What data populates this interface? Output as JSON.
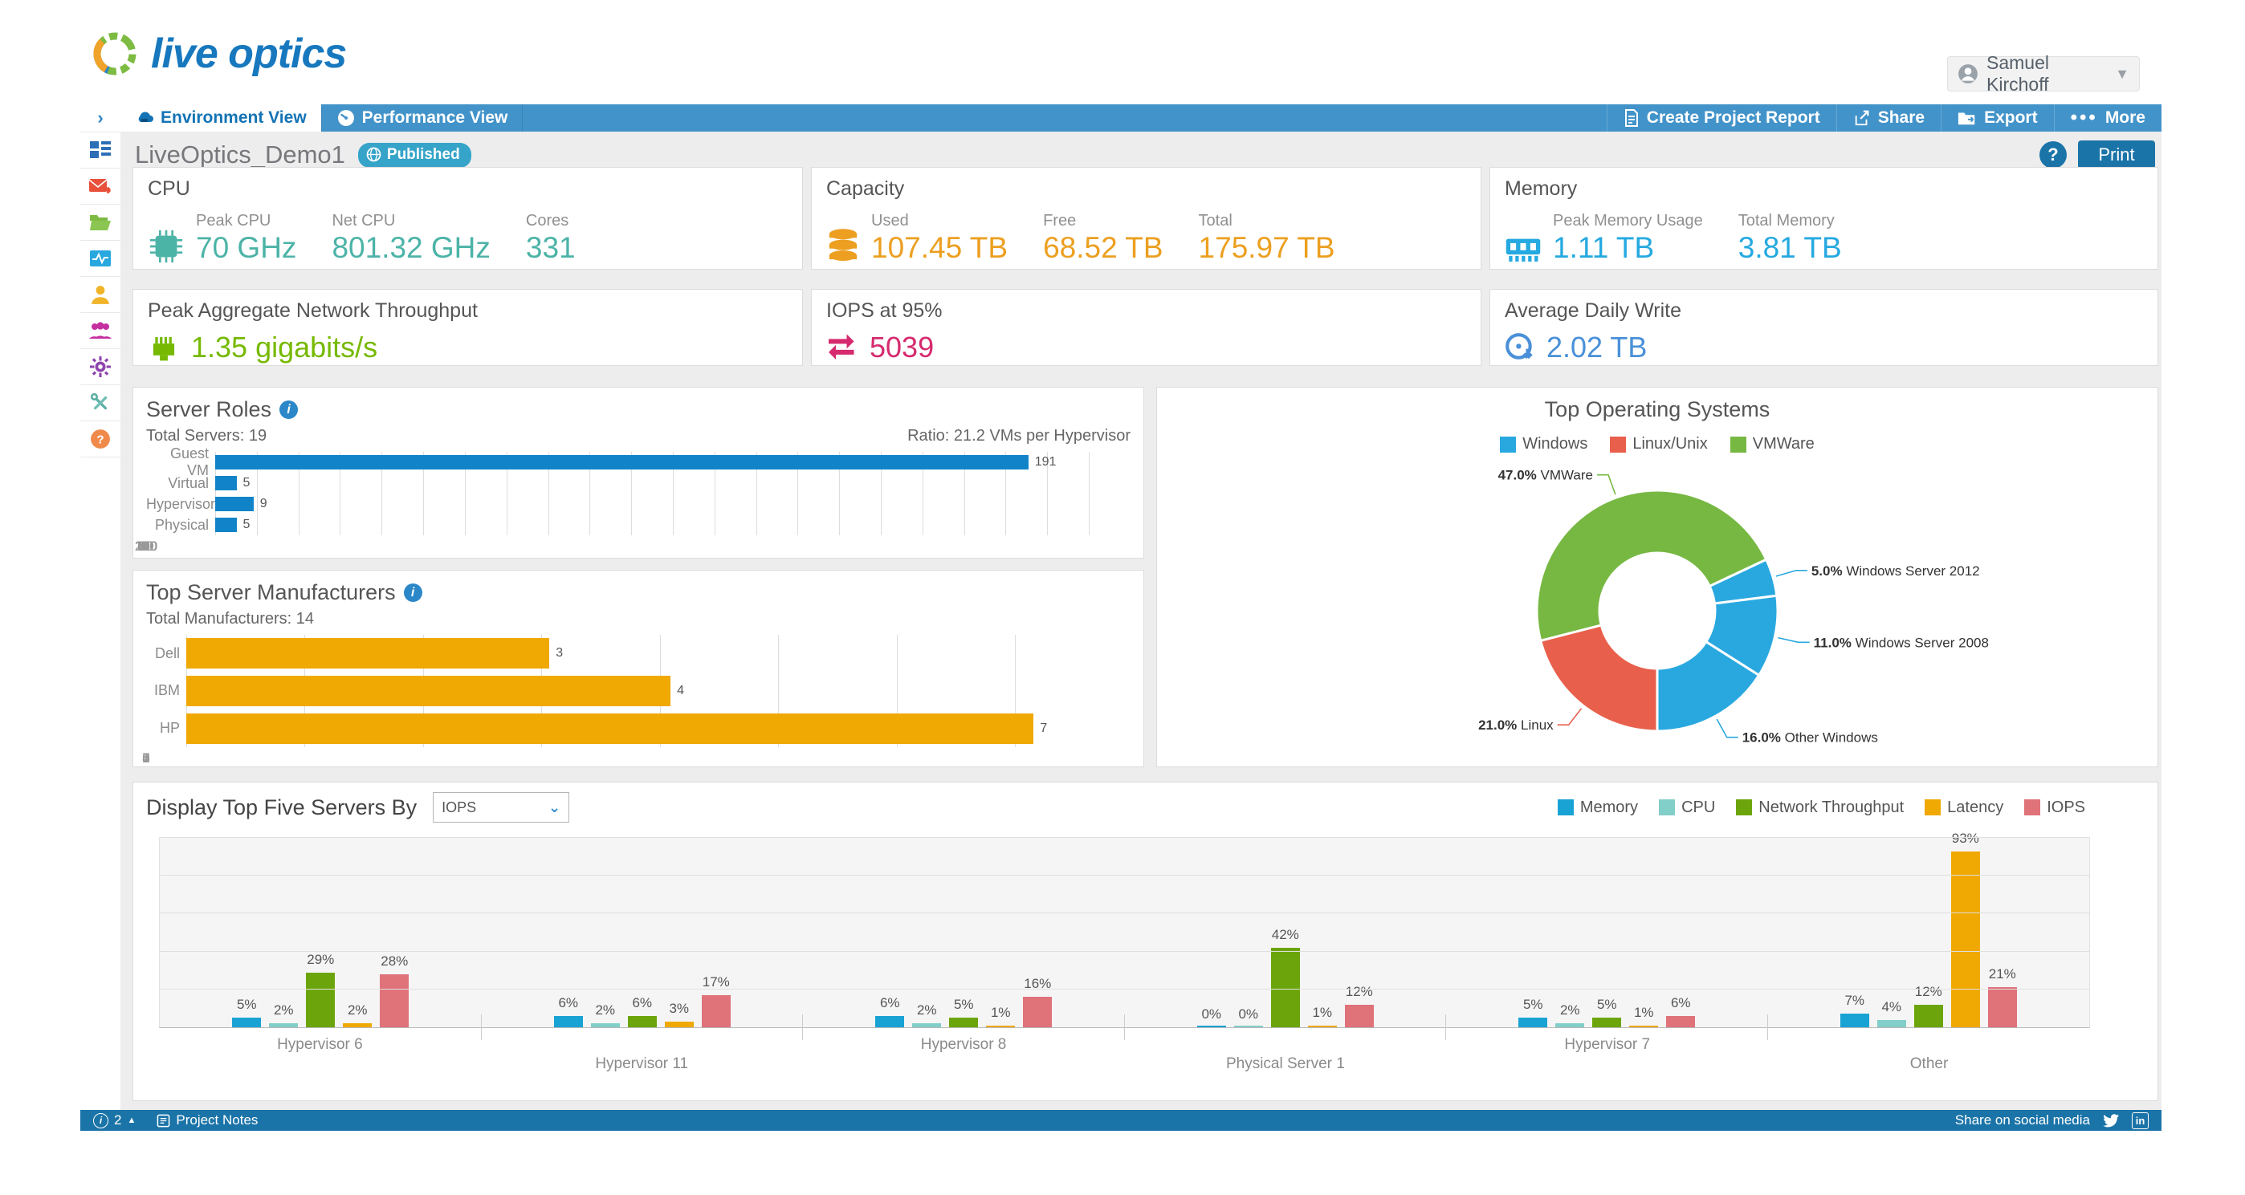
{
  "brand": {
    "name": "live optics"
  },
  "user_menu": {
    "name": "Samuel Kirchoff"
  },
  "navbar": {
    "tabs": [
      {
        "label": "Environment View"
      },
      {
        "label": "Performance View"
      }
    ],
    "actions": {
      "create_report": "Create Project Report",
      "share": "Share",
      "export": "Export",
      "more": "More"
    }
  },
  "page_header": {
    "title": "LiveOptics_Demo1",
    "status_badge": "Published",
    "help_label": "?",
    "print_label": "Print"
  },
  "sidebar_icons": [
    "expand",
    "dashboard",
    "mail-forward",
    "folder",
    "activity-monitor",
    "user",
    "user-group",
    "settings-gear",
    "tools",
    "help"
  ],
  "kpi_cards": {
    "cpu": {
      "title": "CPU",
      "color": "#4cb3a7",
      "metrics": [
        {
          "label": "Peak CPU",
          "value": "70 GHz"
        },
        {
          "label": "Net CPU",
          "value": "801.32 GHz"
        },
        {
          "label": "Cores",
          "value": "331"
        }
      ]
    },
    "capacity": {
      "title": "Capacity",
      "color": "#ec9f20",
      "metrics": [
        {
          "label": "Used",
          "value": "107.45 TB"
        },
        {
          "label": "Free",
          "value": "68.52 TB"
        },
        {
          "label": "Total",
          "value": "175.97 TB"
        }
      ]
    },
    "memory": {
      "title": "Memory",
      "color": "#25a9e0",
      "metrics": [
        {
          "label": "Peak Memory Usage",
          "value": "1.11 TB"
        },
        {
          "label": "Total Memory",
          "value": "3.81 TB"
        }
      ]
    },
    "network": {
      "title": "Peak Aggregate Network Throughput",
      "color": "#76b900",
      "value": "1.35 gigabits/s"
    },
    "iops": {
      "title": "IOPS at 95%",
      "color": "#d62a6e",
      "value": "5039"
    },
    "daily_write": {
      "title": "Average Daily Write",
      "color": "#4a90d9",
      "value": "2.02 TB"
    }
  },
  "chart_data": {
    "server_roles": {
      "type": "bar",
      "orientation": "horizontal",
      "title": "Server Roles",
      "subtitle_left": "Total Servers: 19",
      "subtitle_right": "Ratio: 21.2 VMs per Hypervisor",
      "categories": [
        "Guest VM",
        "Virtual",
        "Hypervisor",
        "Physical"
      ],
      "values": [
        191,
        5,
        9,
        5
      ],
      "bar_color": "#1184C9",
      "xlim": [
        0,
        215
      ],
      "tick_step": 10,
      "tick_max": 210,
      "grid": true
    },
    "manufacturers": {
      "type": "bar",
      "orientation": "horizontal",
      "title": "Top Server Manufacturers",
      "subtitle_left": "Total Manufacturers: 14",
      "categories": [
        "Dell",
        "IBM",
        "HP"
      ],
      "values": [
        3,
        4,
        7
      ],
      "bar_color": "#F0A802",
      "xlim": [
        0,
        7.8
      ],
      "tick_step": 1,
      "tick_max": 7,
      "grid": true
    },
    "operating_systems": {
      "type": "pie",
      "subtype": "donut",
      "title": "Top Operating Systems",
      "legend": [
        {
          "label": "Windows",
          "color": "#29a8e0"
        },
        {
          "label": "Linux/Unix",
          "color": "#e8604c"
        },
        {
          "label": "VMWare",
          "color": "#77b843"
        }
      ],
      "start_angle_deg": 64.8,
      "slices": [
        {
          "label": "Windows Server 2012",
          "pct": 5.0,
          "color": "#29a8e0"
        },
        {
          "label": "Windows Server 2008",
          "pct": 11.0,
          "color": "#29a8e0"
        },
        {
          "label": "Other Windows",
          "pct": 16.0,
          "color": "#29a8e0"
        },
        {
          "label": "Linux",
          "pct": 21.0,
          "color": "#e8604c"
        },
        {
          "label": "VMWare",
          "pct": 47.0,
          "color": "#77b843"
        }
      ]
    },
    "top_servers": {
      "type": "bar",
      "orientation": "vertical",
      "grouped": true,
      "control_label": "Display Top Five Servers By",
      "selected_metric": "IOPS",
      "series": [
        {
          "name": "Memory",
          "color": "#19a2d4"
        },
        {
          "name": "CPU",
          "color": "#82cec8"
        },
        {
          "name": "Network Throughput",
          "color": "#6ca50b"
        },
        {
          "name": "Latency",
          "color": "#f0a802"
        },
        {
          "name": "IOPS",
          "color": "#e0727a"
        }
      ],
      "categories": [
        "Hypervisor 6",
        "Hypervisor 11",
        "Hypervisor 8",
        "Physical Server 1",
        "Hypervisor 7",
        "Other"
      ],
      "values": [
        [
          5,
          2,
          29,
          2,
          28
        ],
        [
          6,
          2,
          6,
          3,
          17
        ],
        [
          6,
          2,
          5,
          1,
          16
        ],
        [
          0,
          0,
          42,
          1,
          12
        ],
        [
          5,
          2,
          5,
          1,
          6
        ],
        [
          7,
          4,
          12,
          93,
          21
        ]
      ],
      "unit": "%",
      "ylim": [
        0,
        100
      ],
      "grid_step": 20
    }
  },
  "footer": {
    "notifications_count": "2",
    "project_notes": "Project Notes",
    "share_text": "Share on social media"
  }
}
